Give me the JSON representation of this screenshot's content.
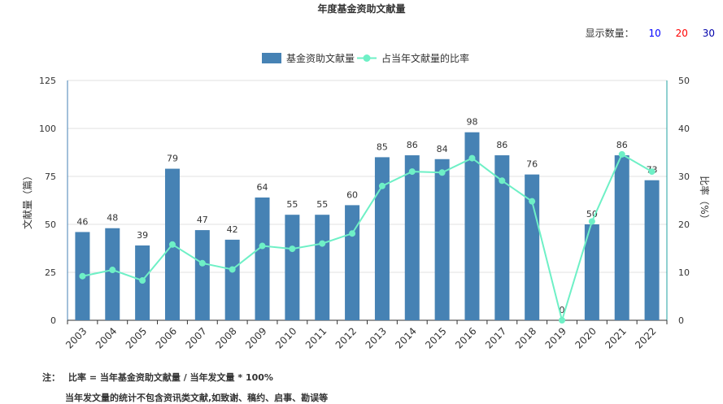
{
  "chart_data": {
    "type": "bar",
    "title": "年度基金资助文献量",
    "categories": [
      "2003",
      "2004",
      "2005",
      "2006",
      "2007",
      "2008",
      "2009",
      "2010",
      "2011",
      "2012",
      "2013",
      "2014",
      "2015",
      "2016",
      "2017",
      "2018",
      "2019",
      "2020",
      "2021",
      "2022"
    ],
    "series": [
      {
        "name": "基金资助文献量",
        "type": "bar",
        "axis": "left",
        "color": "#4682b4",
        "values": [
          46,
          48,
          39,
          79,
          47,
          42,
          64,
          55,
          55,
          60,
          85,
          86,
          84,
          98,
          86,
          76,
          0,
          50,
          86,
          73
        ]
      },
      {
        "name": "占当年文献量的比率",
        "type": "line",
        "axis": "right",
        "color": "#6ef0c6",
        "values": [
          9.2,
          10.5,
          8.3,
          15.8,
          11.9,
          10.6,
          15.5,
          14.9,
          16.0,
          18.1,
          28.0,
          31.0,
          30.8,
          33.8,
          29.1,
          24.8,
          0,
          20.6,
          34.6,
          31.0
        ]
      }
    ],
    "ylabel": "文献量（篇）",
    "y2label": "比率（%）",
    "ylim": [
      0,
      125
    ],
    "yticks": [
      0,
      25,
      50,
      75,
      100,
      125
    ],
    "y2lim": [
      0,
      50
    ],
    "y2ticks": [
      0,
      10,
      20,
      30,
      40,
      50
    ],
    "grid": true,
    "legend": "top-center"
  },
  "controls": {
    "count_label": "显示数量：",
    "options": [
      {
        "label": "10",
        "color": "#0000ff"
      },
      {
        "label": "20",
        "color": "#ff0000"
      },
      {
        "label": "30",
        "color": "#0000aa"
      }
    ]
  },
  "notes": {
    "label": "注：",
    "line1": "比率 = 当年基金资助文献量 / 当年发文量 * 100%",
    "line2": "当年发文量的统计不包含资讯类文献,如致谢、稿约、启事、勘误等"
  }
}
